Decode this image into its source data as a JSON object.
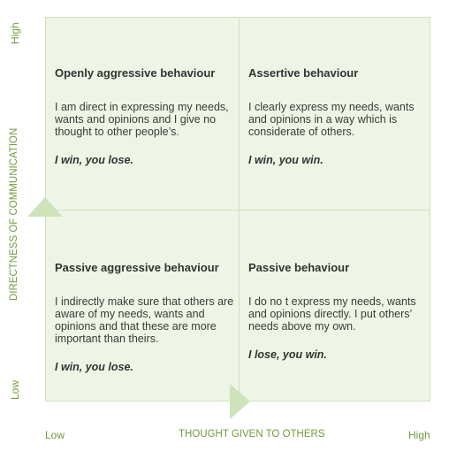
{
  "axes": {
    "y_title": "DIRECTNESS OF COMMUNICATION",
    "y_high": "High",
    "y_low": "Low",
    "x_title": "THOUGHT GIVEN TO OTHERS",
    "x_low": "Low",
    "x_high": "High"
  },
  "quadrants": {
    "top_left": {
      "title": "Openly aggressive behaviour",
      "text": "I am direct in expressing my needs, wants and opinions and I give no thought to other people’s.",
      "motto": "I win, you lose."
    },
    "top_right": {
      "title": "Assertive behaviour",
      "text": "I clearly express my needs, wants and opinions in a way which is considerate of others.",
      "motto": "I win, you win."
    },
    "bottom_left": {
      "title": "Passive aggressive behaviour",
      "text": "I indirectly make sure that others are aware of my needs, wants and opinions and that these are more important than theirs.",
      "motto": "I win, you lose."
    },
    "bottom_right": {
      "title": "Passive behaviour",
      "text": "I do no t express my needs, wants and opinions directly. I put others’ needs above my own.",
      "motto": "I lose, you win."
    }
  },
  "colors": {
    "grid_fill": "#eef5e6",
    "grid_line": "#cfe1bd",
    "axis_text": "#6f9b3c",
    "arrow": "#cfe3ba"
  }
}
